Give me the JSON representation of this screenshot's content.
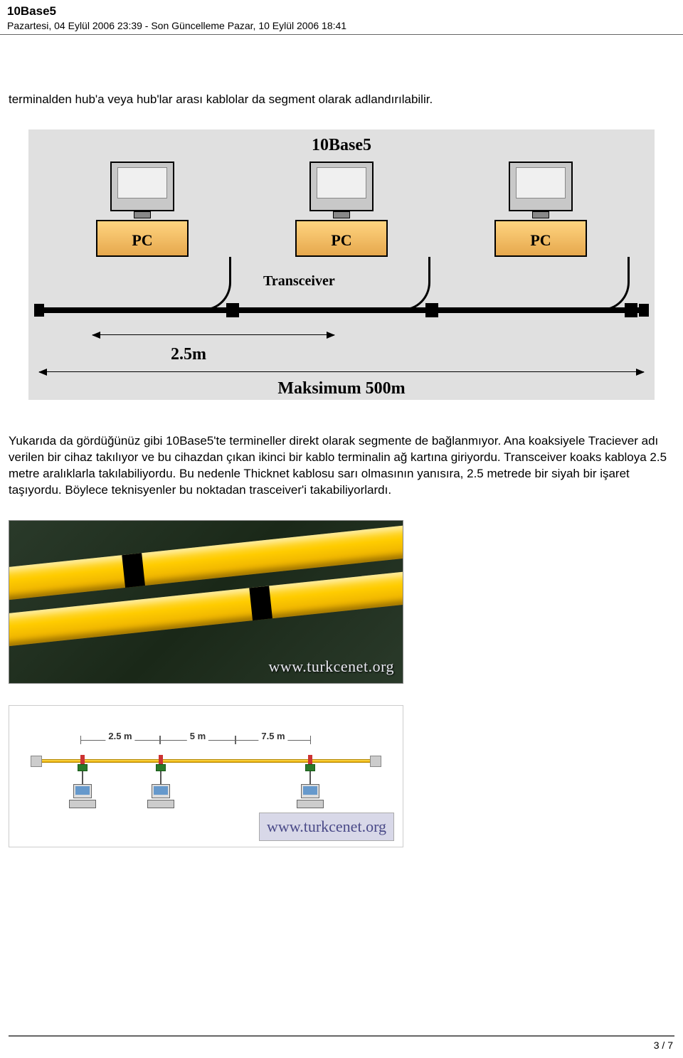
{
  "header": {
    "title": "10Base5",
    "meta": "Pazartesi, 04 Eylül 2006 23:39 - Son Güncelleme Pazar, 10 Eylül 2006 18:41"
  },
  "paragraphs": {
    "p1": "terminalden hub'a veya hub'lar arası kablolar da segment olarak adlandırılabilir.",
    "p2": "Yukarıda da gördüğünüz gibi 10Base5'te termineller direkt olarak segmente de bağlanmıyor. Ana koaksiyele Traciever adı verilen bir cihaz takılıyor ve bu cihazdan çıkan ikinci bir kablo terminalin ağ kartına giriyordu. Transceiver koaks kabloya 2.5 metre aralıklarla takılabiliyordu. Bu nedenle Thicknet kablosu sarı olmasının yanısıra, 2.5 metrede bir siyah bir işaret taşıyordu. Böylece teknisyenler bu noktadan trasceiver'i takabiliyorlardı."
  },
  "diagram1": {
    "type": "network-diagram",
    "title": "10Base5",
    "background_color": "#e0e0e0",
    "pc_labels": [
      "PC",
      "PC",
      "PC"
    ],
    "transceiver_label": "Transceiver",
    "segment_25_label": "2.5m",
    "max_label": "Maksimum 500m",
    "cable_color": "#000000",
    "tower_color": "#e6a84d",
    "title_fontsize": 24,
    "label_fontsize": 22
  },
  "image2": {
    "type": "photo-recreation",
    "description": "Yellow Thicknet coax cables with black 2.5m marker bands",
    "cable_color": "#ffcc00",
    "band_color": "#000000",
    "background_color": "#1a2818",
    "watermark": "www.turkcenet.org",
    "watermark_color": "#e8e8f0"
  },
  "image3": {
    "type": "network-diagram",
    "description": "Transceiver tap spacing diagram",
    "distances": [
      {
        "label": "2.5 m",
        "value": 2.5
      },
      {
        "label": "5 m",
        "value": 5
      },
      {
        "label": "7.5 m",
        "value": 7.5
      }
    ],
    "cable_color": "#e6a800",
    "tick_color": "#cc3333",
    "transceiver_color": "#2a7a2a",
    "background_color": "#ffffff",
    "watermark": "www.turkcenet.org",
    "watermark_color": "#4a4a88",
    "label_fontsize": 13
  },
  "footer": {
    "page": "3 / 7"
  }
}
